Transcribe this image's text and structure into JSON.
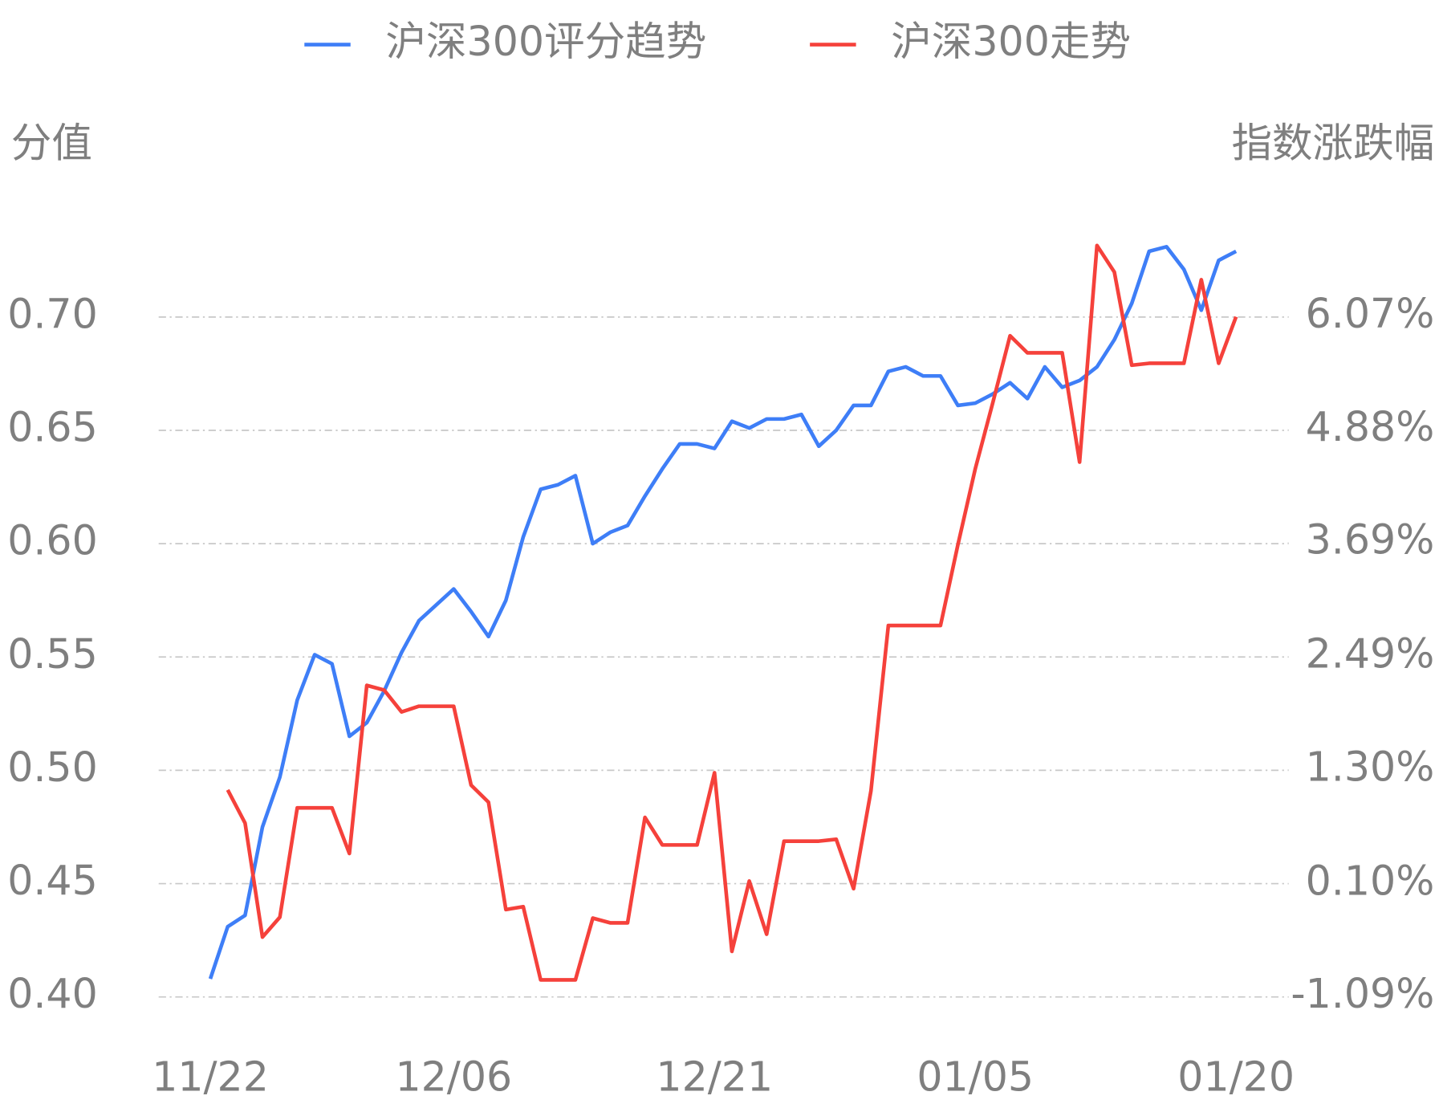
{
  "chart_data": {
    "type": "line",
    "y_label": "分值",
    "y2_label": "指数涨跌幅",
    "categories": [
      "11/22",
      null,
      null,
      null,
      null,
      null,
      null,
      null,
      null,
      null,
      null,
      null,
      null,
      null,
      "12/06",
      null,
      null,
      null,
      null,
      null,
      null,
      null,
      null,
      null,
      null,
      null,
      null,
      null,
      null,
      "12/21",
      null,
      null,
      null,
      null,
      null,
      null,
      null,
      null,
      null,
      null,
      null,
      null,
      null,
      null,
      "01/05",
      null,
      null,
      null,
      null,
      null,
      null,
      null,
      null,
      null,
      null,
      null,
      null,
      null,
      null,
      "01/20"
    ],
    "series": [
      {
        "name": "沪深300评分趋势",
        "color": "#3e7ef7",
        "values": [
          0.408,
          0.431,
          0.436,
          0.475,
          0.497,
          0.531,
          0.551,
          0.547,
          0.515,
          0.521,
          0.535,
          0.552,
          0.566,
          0.573,
          0.58,
          0.57,
          0.559,
          0.575,
          0.603,
          0.624,
          0.626,
          0.63,
          0.6,
          0.605,
          0.608,
          0.621,
          0.633,
          0.644,
          0.644,
          0.642,
          0.654,
          0.651,
          0.655,
          0.655,
          0.657,
          0.643,
          0.65,
          0.661,
          0.661,
          0.676,
          0.678,
          0.674,
          0.674,
          0.661,
          0.662,
          0.666,
          0.671,
          0.664,
          0.678,
          0.669,
          0.672,
          0.678,
          0.69,
          0.706,
          0.729,
          0.731,
          0.721,
          0.703,
          0.725,
          0.729
        ]
      },
      {
        "name": "沪深300走势",
        "color": "#f5413b",
        "axis": "y2",
        "values": [
          null,
          1.09,
          0.74,
          -0.46,
          -0.25,
          0.9,
          0.9,
          0.9,
          0.42,
          2.19,
          2.14,
          1.91,
          1.97,
          1.97,
          1.97,
          1.14,
          0.96,
          -0.17,
          -0.14,
          -0.91,
          -0.91,
          -0.91,
          -0.26,
          -0.31,
          -0.31,
          0.8,
          0.51,
          0.51,
          0.51,
          1.27,
          -0.61,
          0.13,
          -0.43,
          0.55,
          0.55,
          0.55,
          0.57,
          0.05,
          1.08,
          2.82,
          2.82,
          2.82,
          2.82,
          3.67,
          4.47,
          5.16,
          5.87,
          5.69,
          5.69,
          5.69,
          4.54,
          6.82,
          6.54,
          5.56,
          5.58,
          5.58,
          5.58,
          6.46,
          5.58,
          6.07
        ]
      }
    ],
    "ylim": [
      0.4,
      0.75
    ],
    "yticks": [
      {
        "value": 0.4,
        "label": "0.40"
      },
      0.45,
      {
        "value": 0.5,
        "label": "0.50"
      },
      0.55,
      {
        "value": 0.6,
        "label": "0.60"
      },
      0.65,
      {
        "value": 0.7,
        "label": "0.70"
      }
    ],
    "y2lim": [
      -1.09,
      7.26
    ],
    "y2ticks": [
      {
        "value": -1.09,
        "label": "-1.09%"
      },
      {
        "value": 0.1,
        "label": "0.10%"
      },
      {
        "value": 1.3,
        "label": "1.30%"
      },
      {
        "value": 2.49,
        "label": "2.49%"
      },
      {
        "value": 3.69,
        "label": "3.69%"
      },
      {
        "value": 4.88,
        "label": "4.88%"
      },
      {
        "value": 6.07,
        "label": "6.07%"
      }
    ],
    "grid": true,
    "legend": "top"
  }
}
